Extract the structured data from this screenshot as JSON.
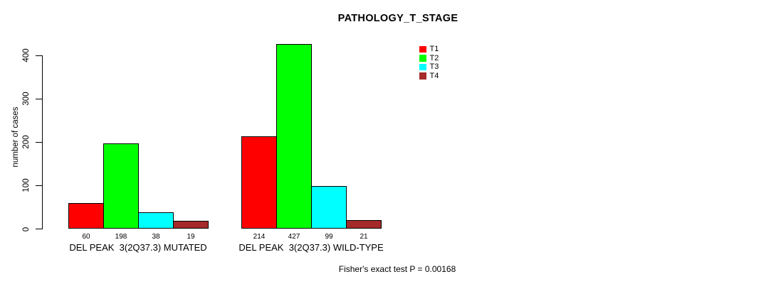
{
  "chart_data": {
    "type": "bar",
    "title": "PATHOLOGY_T_STAGE",
    "ylabel": "number of cases",
    "xlabel": "",
    "ylim": [
      0,
      440
    ],
    "yticks": [
      0,
      100,
      200,
      300,
      400
    ],
    "grid": false,
    "legend_position": "top-right",
    "bar_border_color": "#000000",
    "series": [
      {
        "name": "T1",
        "color": "#ff0000"
      },
      {
        "name": "T2",
        "color": "#00ff00"
      },
      {
        "name": "T3",
        "color": "#00ffff"
      },
      {
        "name": "T4",
        "color": "#a52a2a"
      }
    ],
    "groups": [
      {
        "label": "DEL PEAK  3(2Q37.3) MUTATED",
        "values": [
          60,
          198,
          38,
          19
        ]
      },
      {
        "label": "DEL PEAK  3(2Q37.3) WILD-TYPE",
        "values": [
          214,
          427,
          99,
          21
        ]
      }
    ],
    "value_labels_shown": true,
    "annotation": "Fisher's exact test P = 0.00168"
  }
}
